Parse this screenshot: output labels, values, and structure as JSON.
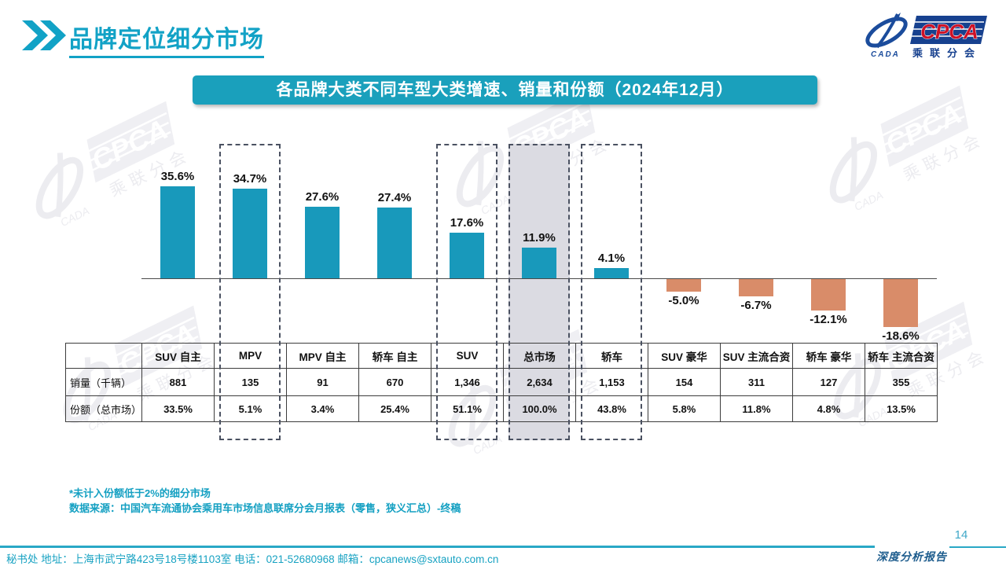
{
  "page": {
    "title": "品牌定位细分市场",
    "page_number": "14",
    "report_label": "深度分析报告"
  },
  "branding": {
    "logo_cpca": "CPCA",
    "logo_cpca_cn": "乘联分会",
    "logo_cada": "CADA",
    "navy": "#1A4A9C",
    "red": "#CE1126"
  },
  "banner": {
    "text": "各品牌大类不同车型大类增速、销量和份额（2024年12月）",
    "background": "#1AA0BC"
  },
  "chart_data": {
    "type": "bar",
    "title": "各品牌大类不同车型大类增速、销量和份额（2024年12月）",
    "unit": "%",
    "categories": [
      "SUV 自主",
      "MPV",
      "MPV 自主",
      "轿车 自主",
      "SUV",
      "总市场",
      "轿车",
      "SUV 豪华",
      "SUV 主流合资",
      "轿车 豪华",
      "轿车 主流合资"
    ],
    "values": [
      35.6,
      34.7,
      27.6,
      27.4,
      17.6,
      11.9,
      4.1,
      -5.0,
      -6.7,
      -12.1,
      -18.6
    ],
    "value_labels": [
      "35.6%",
      "34.7%",
      "27.6%",
      "27.4%",
      "17.6%",
      "11.9%",
      "4.1%",
      "-5.0%",
      "-6.7%",
      "-12.1%",
      "-18.6%"
    ],
    "bar_color_positive": "#1899BB",
    "bar_color_negative": "#D98C69",
    "highlight_fill_color": "#DBDBE2",
    "highlight_columns": [
      {
        "category": "MPV",
        "filled": false
      },
      {
        "category": "SUV",
        "filled": false
      },
      {
        "category": "总市场",
        "filled": true
      },
      {
        "category": "轿车",
        "filled": false
      }
    ],
    "rows": {
      "sales": {
        "label": "销量（千辆）",
        "values": [
          "881",
          "135",
          "91",
          "670",
          "1,346",
          "2,634",
          "1,153",
          "154",
          "311",
          "127",
          "355"
        ]
      },
      "share": {
        "label": "份额（总市场）",
        "values": [
          "33.5%",
          "5.1%",
          "3.4%",
          "25.4%",
          "51.1%",
          "100.0%",
          "43.8%",
          "5.8%",
          "11.8%",
          "4.8%",
          "13.5%"
        ]
      }
    }
  },
  "footnotes": {
    "line1": "*未计入份额低于2%的细分市场",
    "line2": "数据来源：中国汽车流通协会乘用车市场信息联席分会月报表（零售，狭义汇总）-终稿"
  },
  "footer": {
    "contact": "秘书处  地址：上海市武宁路423号18号楼1103室 电话：021-52680968  邮箱：cpcanews@sxtauto.com.cn"
  },
  "colors": {
    "accent": "#14A0C2",
    "dashed_border": "#4A5161",
    "axis_line": "#4A4A4A"
  }
}
